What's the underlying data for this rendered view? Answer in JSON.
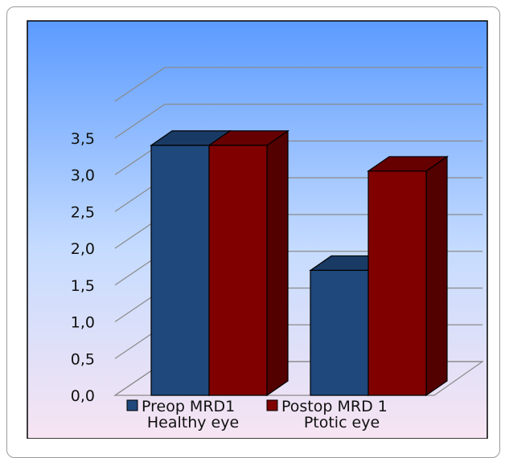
{
  "chart_data": {
    "type": "bar",
    "categories": [
      "Healthy eye",
      "Ptotic eye"
    ],
    "series": [
      {
        "name": "Preop MRD1",
        "values": [
          3.4,
          1.7
        ]
      },
      {
        "name": "Postop MRD 1",
        "values": [
          3.4,
          3.05
        ]
      }
    ],
    "y_ticks": [
      "0,0",
      "0,5",
      "1,0",
      "1,5",
      "2,0",
      "2,5",
      "3,0",
      "3,5"
    ],
    "ylim": [
      0,
      4.0
    ],
    "grid": true,
    "legend_position": "bottom",
    "colors": {
      "preop": "#1f497d",
      "postop": "#800000",
      "background_top": "#5b9bff",
      "background_bottom": "#f7e4f2"
    }
  }
}
